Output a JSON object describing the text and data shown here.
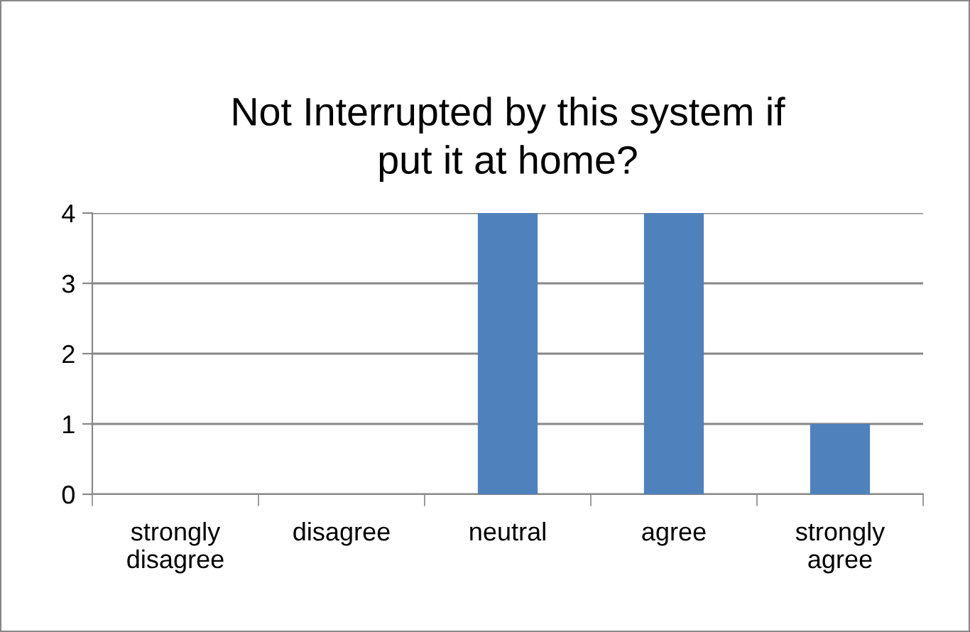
{
  "chart_data": {
    "type": "bar",
    "title": "Not Interrupted by this system if\nput it at home?",
    "categories": [
      "strongly\ndisagree",
      "disagree",
      "neutral",
      "agree",
      "strongly\nagree"
    ],
    "values": [
      0,
      0,
      4,
      4,
      1
    ],
    "color": "#4f81bd",
    "ylim": [
      0,
      4
    ],
    "yticks": [
      0,
      1,
      2,
      3,
      4
    ],
    "grid": "y",
    "legend": false
  }
}
